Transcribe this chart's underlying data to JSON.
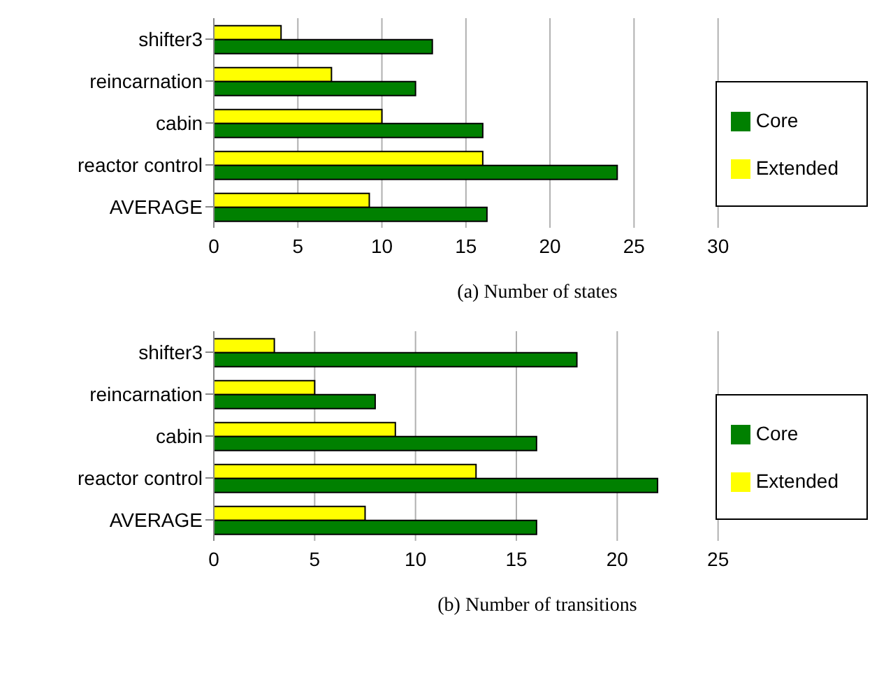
{
  "chart_data": [
    {
      "type": "bar",
      "orientation": "horizontal",
      "title": "(a) Number of states",
      "categories": [
        "shifter3",
        "reincarnation",
        "cabin",
        "reactor control",
        "AVERAGE"
      ],
      "series": [
        {
          "name": "Extended",
          "color": "#ffff00",
          "values": [
            4,
            7,
            10,
            16,
            9.25
          ]
        },
        {
          "name": "Core",
          "color": "#008000",
          "values": [
            13,
            12,
            16,
            24,
            16.25
          ]
        }
      ],
      "xlim": [
        0,
        30
      ],
      "xticks": [
        0,
        5,
        10,
        15,
        20,
        25,
        30
      ],
      "grid": "x",
      "legend": "right"
    },
    {
      "type": "bar",
      "orientation": "horizontal",
      "title": "(b) Number of transitions",
      "categories": [
        "shifter3",
        "reincarnation",
        "cabin",
        "reactor control",
        "AVERAGE"
      ],
      "series": [
        {
          "name": "Extended",
          "color": "#ffff00",
          "values": [
            3,
            5,
            9,
            13,
            7.5
          ]
        },
        {
          "name": "Core",
          "color": "#008000",
          "values": [
            18,
            8,
            16,
            22,
            16
          ]
        }
      ],
      "xlim": [
        0,
        25
      ],
      "xticks": [
        0,
        5,
        10,
        15,
        20,
        25
      ],
      "grid": "x",
      "legend": "right"
    }
  ]
}
